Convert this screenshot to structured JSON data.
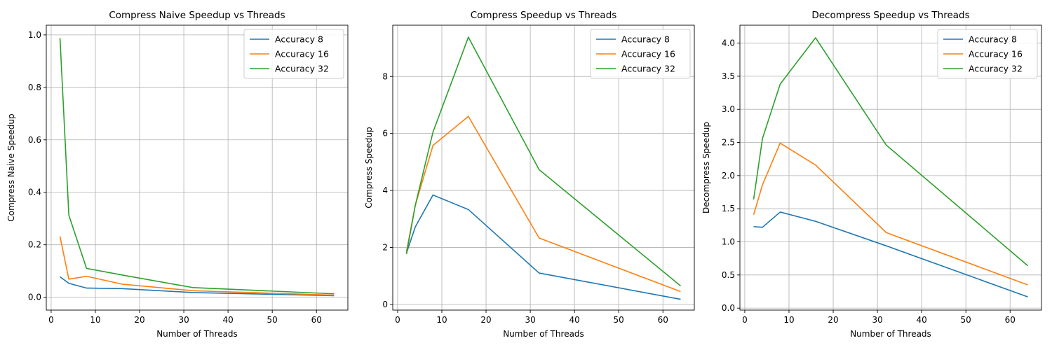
{
  "chart_data": [
    {
      "type": "line",
      "title": "Compress Naive Speedup vs Threads",
      "xlabel": "Number of Threads",
      "ylabel": "Compress Naive Speedup",
      "xlim": [
        -1.1,
        67.1
      ],
      "ylim": [
        -0.049,
        1.037
      ],
      "xticks": [
        0,
        10,
        20,
        30,
        40,
        50,
        60
      ],
      "yticks": [
        0.0,
        0.2,
        0.4,
        0.6,
        0.8,
        1.0
      ],
      "ytick_labels": [
        "0.0",
        "0.2",
        "0.4",
        "0.6",
        "0.8",
        "1.0"
      ],
      "grid": true,
      "legend": "upper right",
      "x": [
        2,
        4,
        8,
        16,
        32,
        64
      ],
      "series": [
        {
          "name": "Accuracy 8",
          "color": "#1f77b4",
          "values": [
            0.078,
            0.053,
            0.035,
            0.033,
            0.018,
            0.006
          ]
        },
        {
          "name": "Accuracy 16",
          "color": "#ff7f0e",
          "values": [
            0.232,
            0.069,
            0.08,
            0.05,
            0.025,
            0.008
          ]
        },
        {
          "name": "Accuracy 32",
          "color": "#2ca02c",
          "values": [
            0.988,
            0.313,
            0.11,
            0.085,
            0.037,
            0.013
          ]
        }
      ]
    },
    {
      "type": "line",
      "title": "Compress Speedup vs Threads",
      "xlabel": "Number of Threads",
      "ylabel": "Compress Speedup",
      "xlim": [
        -1.1,
        67.1
      ],
      "ylim": [
        -0.2,
        9.8
      ],
      "xticks": [
        0,
        10,
        20,
        30,
        40,
        50,
        60
      ],
      "yticks": [
        0,
        2,
        4,
        6,
        8
      ],
      "ytick_labels": [
        "0",
        "2",
        "4",
        "6",
        "8"
      ],
      "grid": true,
      "legend": "upper right",
      "x": [
        2,
        4,
        8,
        16,
        32,
        64
      ],
      "series": [
        {
          "name": "Accuracy 8",
          "color": "#1f77b4",
          "values": [
            1.8,
            2.72,
            3.84,
            3.33,
            1.1,
            0.18
          ]
        },
        {
          "name": "Accuracy 16",
          "color": "#ff7f0e",
          "values": [
            1.85,
            3.48,
            5.58,
            6.6,
            2.33,
            0.45
          ]
        },
        {
          "name": "Accuracy 32",
          "color": "#2ca02c",
          "values": [
            1.77,
            3.48,
            6.05,
            9.38,
            4.73,
            0.65
          ]
        }
      ]
    },
    {
      "type": "line",
      "title": "Decompress Speedup vs Threads",
      "xlabel": "Number of Threads",
      "ylabel": "Decompress Speedup",
      "xlim": [
        -1.1,
        67.1
      ],
      "ylim": [
        -0.03,
        4.27
      ],
      "xticks": [
        0,
        10,
        20,
        30,
        40,
        50,
        60
      ],
      "yticks": [
        0.0,
        0.5,
        1.0,
        1.5,
        2.0,
        2.5,
        3.0,
        3.5,
        4.0
      ],
      "ytick_labels": [
        "0.0",
        "0.5",
        "1.0",
        "1.5",
        "2.0",
        "2.5",
        "3.0",
        "3.5",
        "4.0"
      ],
      "grid": true,
      "legend": "upper right",
      "x": [
        2,
        4,
        8,
        16,
        32,
        64
      ],
      "series": [
        {
          "name": "Accuracy 8",
          "color": "#1f77b4",
          "values": [
            1.23,
            1.22,
            1.45,
            1.31,
            0.94,
            0.17
          ]
        },
        {
          "name": "Accuracy 16",
          "color": "#ff7f0e",
          "values": [
            1.41,
            1.86,
            2.49,
            2.16,
            1.14,
            0.35
          ]
        },
        {
          "name": "Accuracy 32",
          "color": "#2ca02c",
          "values": [
            1.64,
            2.56,
            3.38,
            4.08,
            2.46,
            0.64
          ]
        }
      ]
    }
  ]
}
